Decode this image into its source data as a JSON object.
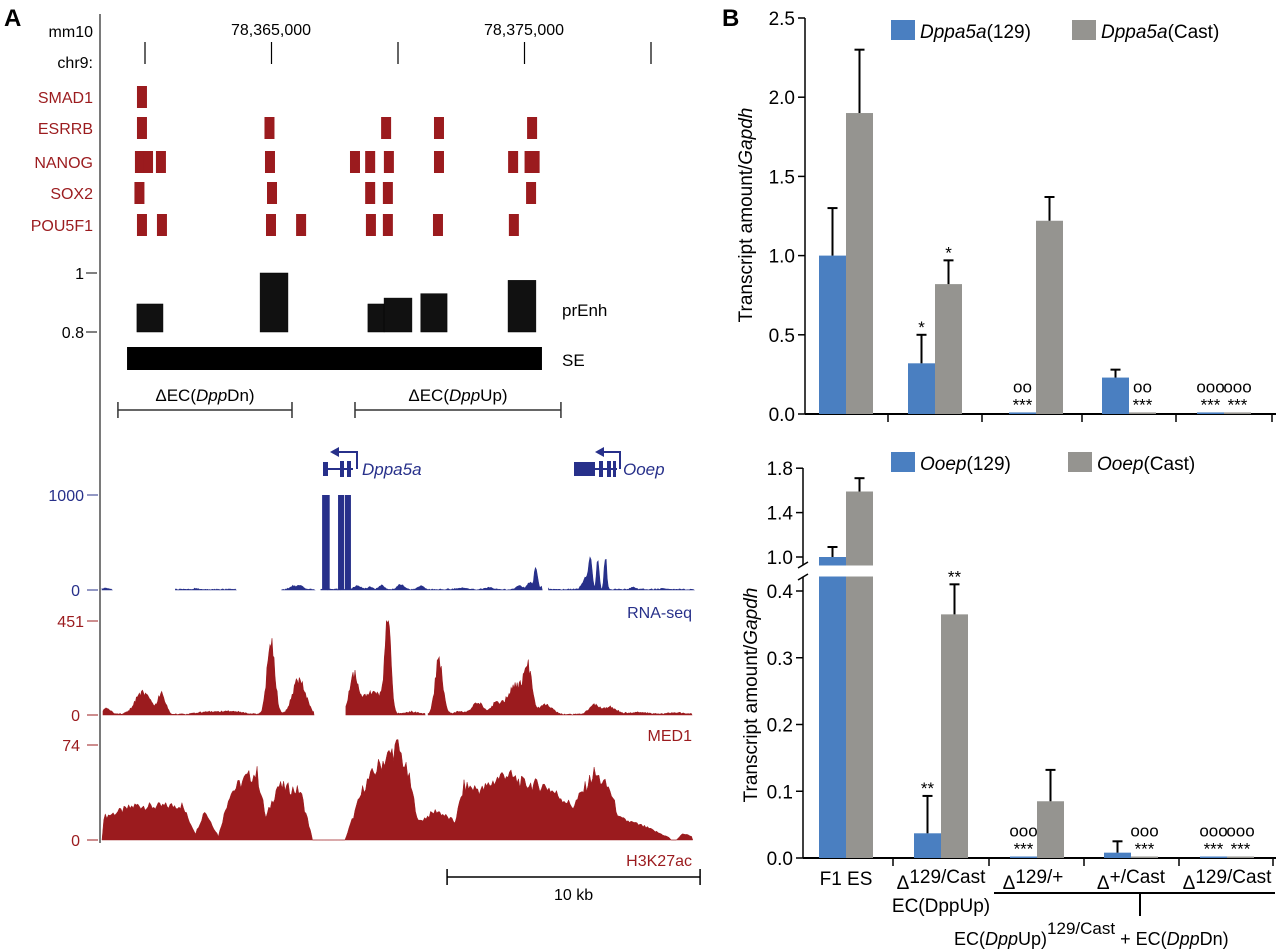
{
  "panel_a": {
    "label": "A",
    "assembly": "mm10",
    "chrom": "chr9:",
    "coord_labels": [
      "78,365,000",
      "78,375,000"
    ],
    "coord_ticks_kb": [
      0,
      5,
      10,
      15,
      20
    ],
    "tf_tracks": [
      {
        "name": "SMAD1",
        "peaks_kb": [
          -0.12
        ]
      },
      {
        "name": "ESRRB",
        "peaks_kb": [
          -0.12,
          4.92,
          9.53,
          11.62,
          15.3
        ]
      },
      {
        "name": "NANOG",
        "peaks_kb": [
          -0.2,
          0.12,
          0.63,
          4.94,
          8.3,
          8.9,
          9.64,
          11.62,
          14.55,
          15.2,
          15.4
        ]
      },
      {
        "name": "SOX2",
        "peaks_kb": [
          -0.22,
          5.02,
          8.9,
          9.6,
          15.26
        ]
      },
      {
        "name": "POU5F1",
        "peaks_kb": [
          -0.12,
          0.67,
          4.98,
          6.17,
          8.93,
          9.6,
          11.58,
          14.58
        ]
      }
    ],
    "prenh": {
      "label": "prEnh",
      "ticks": [
        "1",
        "0.8"
      ],
      "range": [
        0.8,
        1.0
      ],
      "bars": [
        {
          "start_kb": -0.32,
          "end_kb": 0.71,
          "score": 0.895
        },
        {
          "start_kb": 4.55,
          "end_kb": 5.65,
          "score": 1.0
        },
        {
          "start_kb": 8.81,
          "end_kb": 9.45,
          "score": 0.895
        },
        {
          "start_kb": 9.45,
          "end_kb": 10.55,
          "score": 0.915
        },
        {
          "start_kb": 10.9,
          "end_kb": 11.94,
          "score": 0.93
        },
        {
          "start_kb": 14.35,
          "end_kb": 15.45,
          "score": 0.975
        }
      ]
    },
    "se": {
      "label": "SE",
      "start_kb": -0.71,
      "end_kb": 15.69
    },
    "deletions": [
      {
        "prefix": "ΔEC(",
        "italic": "Dpp",
        "suffix": "Dn)",
        "start_kb": -1.07,
        "end_kb": 5.81
      },
      {
        "prefix": "ΔEC(",
        "italic": "Dpp",
        "suffix": "Up)",
        "start_kb": 8.3,
        "end_kb": 16.44
      }
    ],
    "genes": [
      {
        "name": "Dppa5a",
        "strand": "-"
      },
      {
        "name": "Ooep",
        "strand": "-"
      }
    ],
    "rnaseq": {
      "label": "RNA-seq",
      "max_label": "1000",
      "min_label": "0",
      "max": 1000,
      "blocks": [
        [
          7.0,
          7.3,
          1000
        ],
        [
          7.63,
          7.87,
          1000
        ],
        [
          7.9,
          8.14,
          1000
        ]
      ],
      "peaks": [
        [
          -1.5,
          15,
          0.1
        ],
        [
          2.0,
          10,
          0.1
        ],
        [
          5.8,
          30,
          0.1
        ],
        [
          6.1,
          45,
          0.12
        ],
        [
          8.4,
          35,
          0.15
        ],
        [
          8.9,
          25,
          0.1
        ],
        [
          9.35,
          45,
          0.1
        ],
        [
          10.1,
          55,
          0.12
        ],
        [
          10.9,
          40,
          0.1
        ],
        [
          12.5,
          15,
          0.2
        ],
        [
          13.6,
          20,
          0.15
        ],
        [
          14.8,
          40,
          0.12
        ],
        [
          15.2,
          70,
          0.1
        ],
        [
          15.45,
          260,
          0.06
        ],
        [
          15.75,
          50,
          0.1
        ],
        [
          17.4,
          110,
          0.12
        ],
        [
          17.6,
          330,
          0.07
        ],
        [
          17.9,
          340,
          0.05
        ],
        [
          18.2,
          330,
          0.05
        ],
        [
          19.3,
          25,
          0.1
        ],
        [
          20.5,
          10,
          0.1
        ]
      ],
      "segments": [
        [
          -1.7,
          -1.3
        ],
        [
          1.2,
          3.6
        ],
        [
          5.4,
          6.7
        ],
        [
          6.95,
          15.7
        ],
        [
          15.95,
          21.7
        ]
      ]
    },
    "med1": {
      "label": "MED1",
      "max_label": "451",
      "min_label": "0",
      "max": 451,
      "peaks": [
        [
          -1.5,
          30,
          0.15
        ],
        [
          -0.08,
          104,
          0.3
        ],
        [
          0.67,
          95,
          0.15
        ],
        [
          2.5,
          12,
          0.4
        ],
        [
          3.5,
          14,
          0.4
        ],
        [
          4.98,
          360,
          0.15
        ],
        [
          6.09,
          166,
          0.25
        ],
        [
          8.26,
          175,
          0.18
        ],
        [
          8.85,
          86,
          0.3
        ],
        [
          9.2,
          55,
          0.2
        ],
        [
          9.6,
          441,
          0.12
        ],
        [
          10.5,
          12,
          0.3
        ],
        [
          11.62,
          252,
          0.15
        ],
        [
          12.5,
          12,
          0.3
        ],
        [
          13.16,
          57,
          0.2
        ],
        [
          13.87,
          47,
          0.18
        ],
        [
          14.66,
          134,
          0.35
        ],
        [
          15.14,
          181,
          0.15
        ],
        [
          15.85,
          47,
          0.25
        ],
        [
          17.75,
          47,
          0.2
        ],
        [
          18.38,
          33,
          0.25
        ],
        [
          19.5,
          10,
          0.4
        ],
        [
          21.0,
          8,
          0.4
        ]
      ],
      "segments": [
        [
          -1.66,
          6.68
        ],
        [
          7.94,
          11.07
        ],
        [
          11.19,
          21.62
        ]
      ]
    },
    "h3k27ac": {
      "label": "H3K27ac",
      "max_label": "74",
      "min_label": "0",
      "max": 74,
      "points": [
        [
          -1.7,
          0
        ],
        [
          -1.63,
          18
        ],
        [
          -0.34,
          27
        ],
        [
          0.29,
          26
        ],
        [
          1.46,
          27
        ],
        [
          2.0,
          5
        ],
        [
          2.36,
          23
        ],
        [
          2.9,
          3
        ],
        [
          3.35,
          36
        ],
        [
          3.98,
          48
        ],
        [
          4.43,
          52
        ],
        [
          4.78,
          17
        ],
        [
          5.24,
          42
        ],
        [
          6.14,
          38
        ],
        [
          6.59,
          3
        ],
        [
          6.62,
          0
        ],
        [
          7.9,
          0
        ],
        [
          8.12,
          12
        ],
        [
          8.66,
          42
        ],
        [
          9.29,
          59
        ],
        [
          10.0,
          73
        ],
        [
          10.45,
          47
        ],
        [
          10.81,
          14
        ],
        [
          11.53,
          23
        ],
        [
          12.25,
          14
        ],
        [
          12.61,
          42
        ],
        [
          13.33,
          39
        ],
        [
          14.23,
          52
        ],
        [
          14.94,
          44
        ],
        [
          15.85,
          42
        ],
        [
          16.92,
          26
        ],
        [
          17.75,
          52
        ],
        [
          18.38,
          39
        ],
        [
          18.74,
          17
        ],
        [
          19.8,
          10
        ],
        [
          20.71,
          2
        ],
        [
          20.8,
          0
        ],
        [
          21.0,
          0
        ],
        [
          21.25,
          5
        ],
        [
          21.6,
          3
        ],
        [
          21.65,
          0
        ]
      ]
    },
    "scalebar": {
      "label": "10 kb",
      "start_kb": 11.94,
      "end_kb": 21.94
    }
  },
  "panel_b": {
    "label": "B",
    "colors": {
      "allele_129": "#4a7fc1",
      "allele_cast": "#959490"
    },
    "bottom_caption": {
      "p1": "EC(",
      "it1": "Dpp",
      "p2": "Up)",
      "sup": "129/Cast",
      "p3": " + EC(",
      "it2": "Dpp",
      "p4": "Dn)"
    }
  },
  "chart_data": [
    {
      "type": "bar",
      "title": "",
      "ylabel": {
        "text": "Transcript amount/",
        "italic": "Gapdh"
      },
      "ylim": [
        0,
        2.5
      ],
      "yticks": [
        "0.0",
        "0.5",
        "1.0",
        "1.5",
        "2.0",
        "2.5"
      ],
      "legend": [
        {
          "gene": "Dppa5a",
          "strain": "(129)"
        },
        {
          "gene": "Dppa5a",
          "strain": "(Cast)"
        }
      ],
      "legend_position": "top",
      "categories": [
        "F1 ES",
        "Δ129/Cast EC(DppUp)",
        "Δ129/+",
        "Δ+/Cast",
        "Δ129/Cast"
      ],
      "series": [
        {
          "name": "Dppa5a(129)",
          "values": [
            1.0,
            0.32,
            0.01,
            0.23,
            0.01
          ],
          "errors": [
            1.3,
            0.5,
            null,
            0.28,
            null
          ],
          "annotations": [
            null,
            {
              "stars": "*"
            },
            {
              "circles": "oo",
              "stars": "***"
            },
            null,
            {
              "circles": "ooo",
              "stars": "***"
            }
          ]
        },
        {
          "name": "Dppa5a(Cast)",
          "values": [
            1.9,
            0.82,
            1.22,
            0.01,
            0.01
          ],
          "errors": [
            2.3,
            0.97,
            1.37,
            null,
            null
          ],
          "annotations": [
            null,
            {
              "stars": "*"
            },
            null,
            {
              "circles": "oo",
              "stars": "***"
            },
            {
              "circles": "ooo",
              "stars": "***"
            }
          ]
        }
      ]
    },
    {
      "type": "bar",
      "title": "",
      "ylabel": {
        "text": "Transcript amount/",
        "italic": "Gapdh"
      },
      "ylim": [
        0,
        1.8
      ],
      "axis_break": [
        0.42,
        0.93
      ],
      "yticks": [
        "0.0",
        "0.1",
        "0.2",
        "0.3",
        "0.4",
        "1.0",
        "1.4",
        "1.8"
      ],
      "legend": [
        {
          "gene": "Ooep",
          "strain": "(129)"
        },
        {
          "gene": "Ooep",
          "strain": "(Cast)"
        }
      ],
      "legend_position": "top",
      "categories": [
        "F1 ES",
        "Δ129/Cast EC(DppUp)",
        "Δ129/+",
        "Δ+/Cast",
        "Δ129/Cast"
      ],
      "xlabels": [
        {
          "main": "F1 ES"
        },
        {
          "delta": "Δ",
          "main": "129/Cast",
          "line2": "EC(DppUp)"
        },
        {
          "delta": "Δ",
          "main": "129/+"
        },
        {
          "delta": "Δ",
          "main": "+/Cast"
        },
        {
          "delta": "Δ",
          "main": "129/Cast"
        }
      ],
      "series": [
        {
          "name": "Ooep(129)",
          "values": [
            1.0,
            0.037,
            0.001,
            0.008,
            0.001
          ],
          "errors": [
            1.09,
            0.093,
            null,
            0.025,
            null
          ],
          "annotations": [
            null,
            {
              "stars": "**"
            },
            {
              "circles": "ooo",
              "stars": "***"
            },
            null,
            {
              "circles": "ooo",
              "stars": "***"
            }
          ]
        },
        {
          "name": "Ooep(Cast)",
          "values": [
            1.59,
            0.365,
            0.085,
            0.001,
            0.001
          ],
          "errors": [
            1.71,
            0.41,
            0.132,
            null,
            null
          ],
          "annotations": [
            null,
            {
              "stars": "**"
            },
            null,
            {
              "circles": "ooo",
              "stars": "***"
            },
            {
              "circles": "ooo",
              "stars": "***"
            }
          ]
        }
      ]
    }
  ]
}
